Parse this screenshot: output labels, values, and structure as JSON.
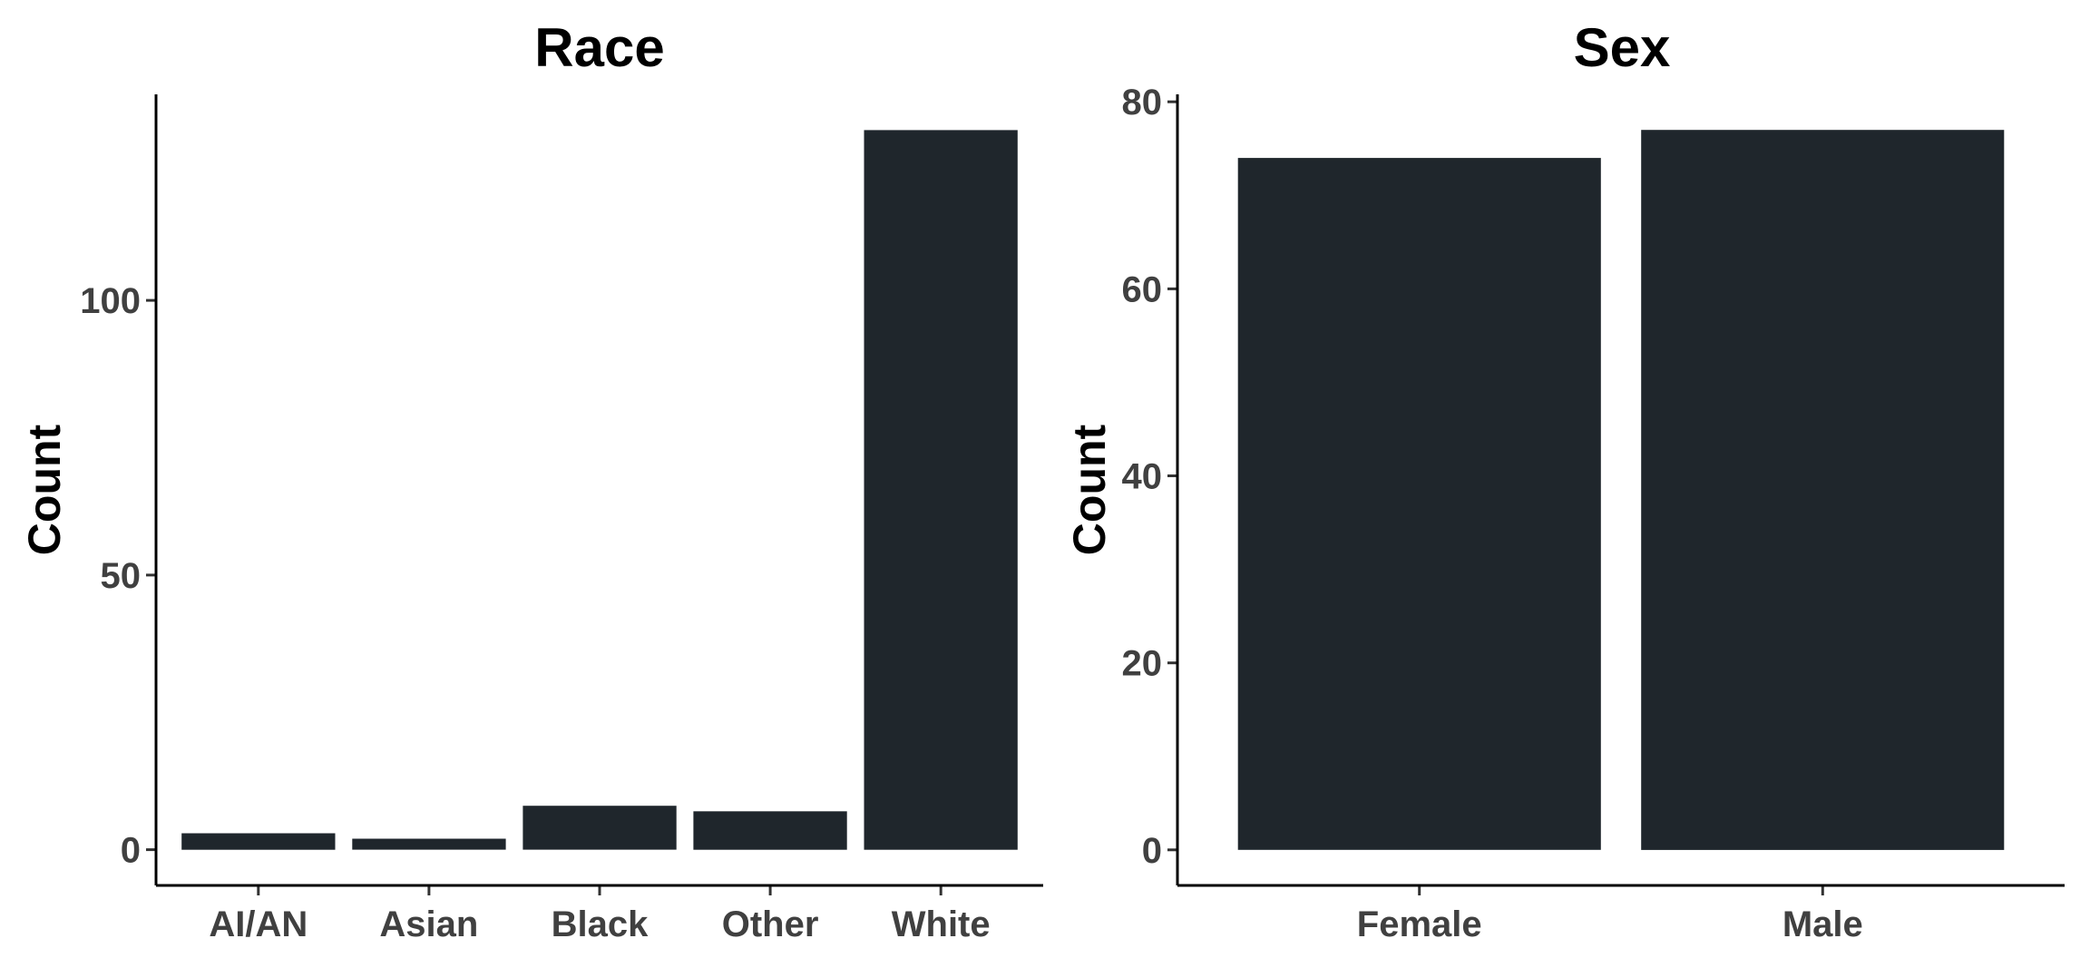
{
  "colors": {
    "bar": "#1f262c",
    "background": "#ffffff",
    "axis": "#000000",
    "tick_text": "#404040"
  },
  "chart_data": [
    {
      "type": "bar",
      "title": "Race",
      "xlabel": "",
      "ylabel": "Count",
      "categories": [
        "AI/AN",
        "Asian",
        "Black",
        "Other",
        "White"
      ],
      "values": [
        3,
        2,
        8,
        7,
        131
      ],
      "ylim": [
        -6.5,
        137.5
      ],
      "yticks": [
        0,
        50,
        100
      ],
      "grid": false,
      "legend": "none"
    },
    {
      "type": "bar",
      "title": "Sex",
      "xlabel": "",
      "ylabel": "Count",
      "categories": [
        "Female",
        "Male"
      ],
      "values": [
        74,
        77
      ],
      "ylim": [
        -3.8,
        80.8
      ],
      "yticks": [
        0,
        20,
        40,
        60,
        80
      ],
      "grid": false,
      "legend": "none"
    }
  ]
}
